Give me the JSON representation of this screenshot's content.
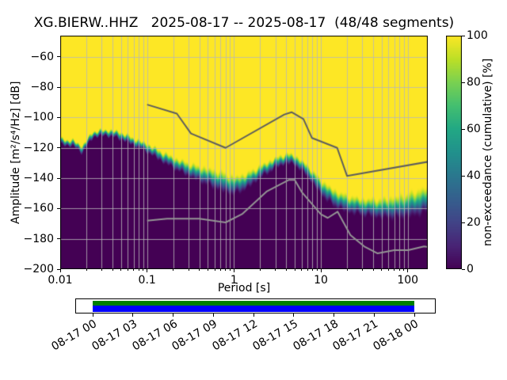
{
  "title": "XG.BIERW..HHZ   2025-08-17 -- 2025-08-17  (48/48 segments)",
  "station_id": "XG.BIERW..HHZ",
  "date_range": "2025-08-17 -- 2025-08-17",
  "segments": "48/48",
  "axes": {
    "xlabel": "Period [s]",
    "ylabel": "Amplitude [m²/s⁴/Hz] [dB]",
    "x_ticks": [
      {
        "value": 0.01,
        "label": "0.01"
      },
      {
        "value": 0.1,
        "label": "0.1"
      },
      {
        "value": 1,
        "label": "1"
      },
      {
        "value": 10,
        "label": "10"
      },
      {
        "value": 100,
        "label": "100"
      }
    ],
    "y_ticks": [
      {
        "value": -60,
        "label": "−60"
      },
      {
        "value": -80,
        "label": "−80"
      },
      {
        "value": -100,
        "label": "−100"
      },
      {
        "value": -120,
        "label": "−120"
      },
      {
        "value": -140,
        "label": "−140"
      },
      {
        "value": -160,
        "label": "−160"
      },
      {
        "value": -180,
        "label": "−180"
      },
      {
        "value": -200,
        "label": "−200"
      }
    ]
  },
  "colorbar": {
    "label": "non-exceedance (cumulative) [%]",
    "colormap": "viridis",
    "ticks": [
      {
        "value": 0,
        "label": "0"
      },
      {
        "value": 20,
        "label": "20"
      },
      {
        "value": 40,
        "label": "40"
      },
      {
        "value": 60,
        "label": "60"
      },
      {
        "value": 80,
        "label": "80"
      },
      {
        "value": 100,
        "label": "100"
      }
    ],
    "viridis_stops": [
      "#440154",
      "#482475",
      "#414487",
      "#355f8d",
      "#2a788e",
      "#21918c",
      "#22a884",
      "#44bf70",
      "#7ad151",
      "#bddf26",
      "#fde725"
    ]
  },
  "chart_data": {
    "type": "heatmap",
    "subtype": "ppsd_cumulative_distribution",
    "title": "XG.BIERW..HHZ   2025-08-17 -- 2025-08-17  (48/48 segments)",
    "xlabel": "Period [s]",
    "ylabel": "Amplitude [m²/s⁴/Hz] [dB]",
    "colorbar_label": "non-exceedance (cumulative) [%]",
    "x_scale": "log",
    "x_range": [
      0.01,
      170
    ],
    "y_range": [
      -200,
      -46
    ],
    "value_range": [
      0,
      100
    ],
    "segments_used": 48,
    "segments_total": 48,
    "grid": true,
    "cumulative_boundary_format": [
      "period_s",
      "center_db",
      "transition_width_db"
    ],
    "cumulative_boundary": [
      [
        0.01,
        -116,
        5
      ],
      [
        0.014,
        -117,
        5
      ],
      [
        0.018,
        -121,
        6
      ],
      [
        0.024,
        -111,
        5
      ],
      [
        0.035,
        -110,
        5
      ],
      [
        0.05,
        -112,
        6
      ],
      [
        0.07,
        -116,
        6
      ],
      [
        0.1,
        -120,
        7
      ],
      [
        0.15,
        -126,
        8
      ],
      [
        0.22,
        -131,
        9
      ],
      [
        0.35,
        -136,
        11
      ],
      [
        0.5,
        -139,
        13
      ],
      [
        0.7,
        -142,
        15
      ],
      [
        1,
        -145,
        14
      ],
      [
        1.4,
        -142,
        12
      ],
      [
        2,
        -136,
        10
      ],
      [
        3,
        -130,
        8
      ],
      [
        4,
        -127,
        8
      ],
      [
        5,
        -128,
        8
      ],
      [
        7,
        -135,
        9
      ],
      [
        10,
        -146,
        12
      ],
      [
        14,
        -153,
        13
      ],
      [
        20,
        -157,
        13
      ],
      [
        30,
        -159,
        13
      ],
      [
        50,
        -160,
        15
      ],
      [
        80,
        -159,
        17
      ],
      [
        120,
        -157,
        19
      ],
      [
        170,
        -154,
        20
      ]
    ],
    "noise_models": {
      "peterson_high_db": [
        [
          0.1,
          -91.5
        ],
        [
          0.22,
          -97.4
        ],
        [
          0.32,
          -110.5
        ],
        [
          0.8,
          -120
        ],
        [
          3.8,
          -98
        ],
        [
          4.6,
          -96.5
        ],
        [
          6.3,
          -101
        ],
        [
          7.9,
          -113.5
        ],
        [
          15.4,
          -120
        ],
        [
          20,
          -138.5
        ],
        [
          354.8,
          -126
        ]
      ],
      "peterson_low_db": [
        [
          0.1,
          -168
        ],
        [
          0.17,
          -166.7
        ],
        [
          0.4,
          -166.7
        ],
        [
          0.8,
          -169.2
        ],
        [
          1.24,
          -163.7
        ],
        [
          2.4,
          -148.6
        ],
        [
          4.3,
          -141.1
        ],
        [
          5,
          -141.1
        ],
        [
          6,
          -149
        ],
        [
          10,
          -163.8
        ],
        [
          12,
          -166.2
        ],
        [
          15.6,
          -162.1
        ],
        [
          21.9,
          -177.5
        ],
        [
          31.6,
          -185
        ],
        [
          45,
          -189.6
        ],
        [
          70,
          -187.5
        ],
        [
          101,
          -187.5
        ],
        [
          154,
          -185
        ],
        [
          328.5,
          -187.5
        ]
      ]
    }
  },
  "timeline": {
    "labels": [
      "08-17 00",
      "08-17 03",
      "08-17 06",
      "08-17 09",
      "08-17 12",
      "08-17 15",
      "08-17 18",
      "08-17 21",
      "08-18 00"
    ],
    "processed_color": "#008000",
    "data_color": "#0000ff"
  },
  "colors": {
    "grid": "#b8b8b8",
    "model_high": "#5e5e5e",
    "model_low": "#949494",
    "frame": "#000000",
    "background": "#ffffff"
  }
}
